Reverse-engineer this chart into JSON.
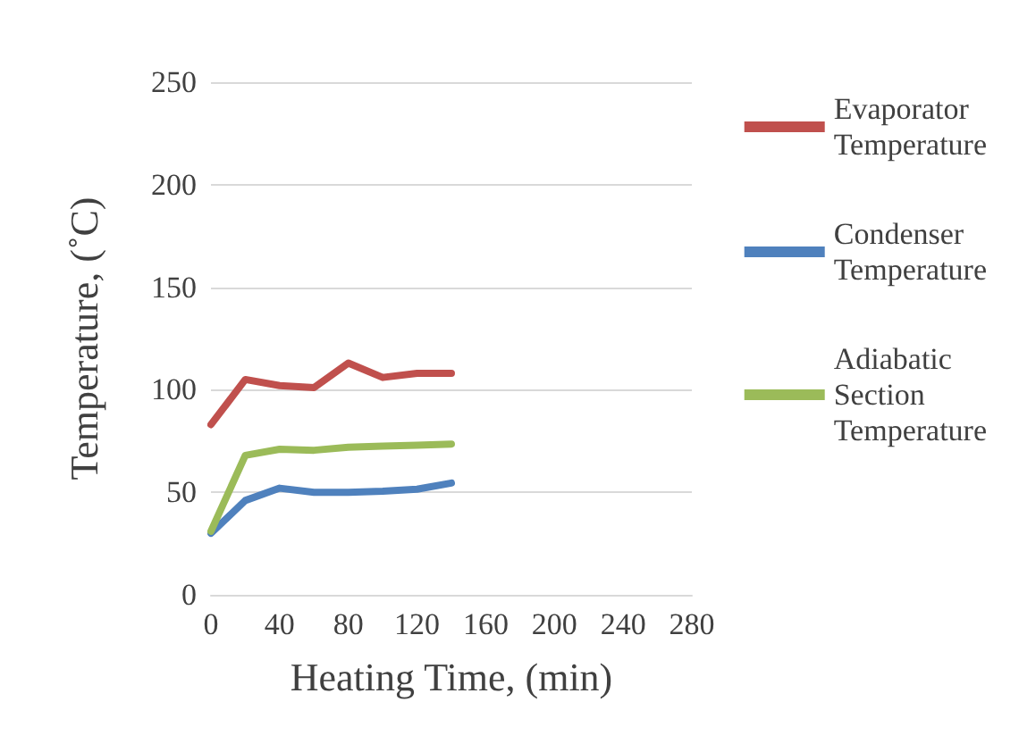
{
  "chart_data": {
    "type": "line",
    "xlabel": "Heating Time, (min)",
    "ylabel": "Temperature, (˚C)",
    "x": [
      0,
      20,
      40,
      60,
      80,
      100,
      120,
      140
    ],
    "series": [
      {
        "name": "Evaporator\nTemperature",
        "color": "#c0504d",
        "values": [
          83,
          105,
          102,
          101,
          113,
          106,
          108,
          108
        ]
      },
      {
        "name": "Condenser\nTemperature",
        "color": "#4f81bd",
        "values": [
          30,
          46,
          52,
          50,
          50,
          50.5,
          51.5,
          54.5
        ]
      },
      {
        "name": "Adiabatic\nSection\nTemperature",
        "color": "#9bbb59",
        "values": [
          31,
          68,
          71,
          70.5,
          72,
          72.5,
          73,
          73.5
        ]
      }
    ],
    "xlim": [
      0,
      280
    ],
    "xticks": [
      0,
      40,
      80,
      120,
      160,
      200,
      240,
      280
    ],
    "ylim": [
      0,
      250
    ],
    "yticks": [
      0,
      50,
      100,
      150,
      200,
      250
    ],
    "grid": "y",
    "legend": "right",
    "marker": "none",
    "line_style": "solid"
  }
}
